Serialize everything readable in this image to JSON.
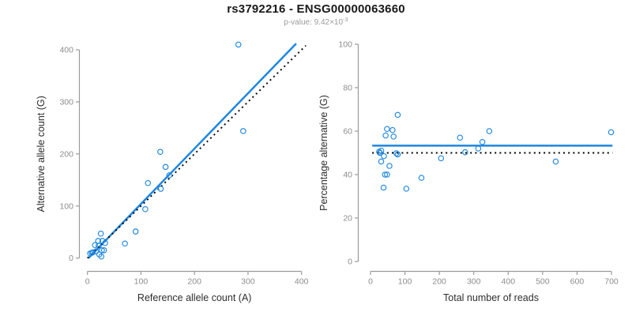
{
  "header": {
    "title": "rs3792216 - ENSG00000063660",
    "subtitle_prefix": "p-value: 9.42×10",
    "subtitle_exponent": "-3"
  },
  "colors": {
    "accent_blue": "#1E87E0",
    "dotted_black": "#000000",
    "axis_gray": "#9a9a9a",
    "tick_label_gray": "#8c8c8c",
    "axis_title_dark": "#2e2e2e",
    "subtitle_gray": "#9b9b9b"
  },
  "chart_data": [
    {
      "id": "allele-count-scatter",
      "type": "scatter",
      "xlabel": "Reference allele count (A)",
      "ylabel": "Alternative allele count (G)",
      "xlim": [
        0,
        400
      ],
      "ylim": [
        0,
        400
      ],
      "xticks": [
        0,
        100,
        200,
        300,
        400
      ],
      "yticks": [
        0,
        100,
        200,
        300,
        400
      ],
      "grid": false,
      "marker": "open-circle",
      "points": [
        [
          5,
          9
        ],
        [
          8,
          10
        ],
        [
          10,
          11
        ],
        [
          14,
          25
        ],
        [
          16,
          13
        ],
        [
          20,
          33
        ],
        [
          21,
          24
        ],
        [
          22,
          7
        ],
        [
          25,
          47
        ],
        [
          26,
          3
        ],
        [
          27,
          15
        ],
        [
          28,
          33
        ],
        [
          31,
          15
        ],
        [
          33,
          29
        ],
        [
          70,
          28
        ],
        [
          90,
          51
        ],
        [
          108,
          94
        ],
        [
          113,
          144
        ],
        [
          136,
          204
        ],
        [
          137,
          133
        ],
        [
          146,
          175
        ],
        [
          153,
          159
        ],
        [
          282,
          410
        ],
        [
          291,
          244
        ]
      ],
      "lines": [
        {
          "name": "regression-line",
          "style": "solid",
          "color": "blue",
          "points": [
            [
              2,
              0
            ],
            [
              390,
              412
            ]
          ]
        },
        {
          "name": "identity-line",
          "style": "dotted",
          "color": "black",
          "points": [
            [
              0,
              0
            ],
            [
              408,
              408
            ]
          ]
        }
      ]
    },
    {
      "id": "percentage-alternative-scatter",
      "type": "scatter",
      "xlabel": "Total number of reads",
      "ylabel": "Percentage alternative (G)",
      "xlim": [
        0,
        700
      ],
      "ylim": [
        0,
        100
      ],
      "xticks": [
        0,
        100,
        200,
        300,
        400,
        500,
        600,
        700
      ],
      "yticks": [
        0,
        20,
        40,
        60,
        80,
        100
      ],
      "grid": false,
      "marker": "open-circle",
      "points": [
        [
          25,
          50.5
        ],
        [
          27,
          50
        ],
        [
          31,
          51
        ],
        [
          31,
          46
        ],
        [
          38,
          34
        ],
        [
          39,
          48.5
        ],
        [
          42,
          40
        ],
        [
          44,
          58
        ],
        [
          48,
          40
        ],
        [
          48,
          61
        ],
        [
          55,
          44
        ],
        [
          64,
          60.5
        ],
        [
          67,
          57.5
        ],
        [
          75,
          49.8
        ],
        [
          79,
          49.3
        ],
        [
          79,
          67.5
        ],
        [
          104,
          33.5
        ],
        [
          148,
          38.5
        ],
        [
          205,
          47.5
        ],
        [
          260,
          57
        ],
        [
          275,
          50.3
        ],
        [
          313,
          52
        ],
        [
          325,
          55
        ],
        [
          345,
          60
        ],
        [
          538,
          46
        ],
        [
          699,
          59.5
        ]
      ],
      "lines": [
        {
          "name": "mean-percentage-line",
          "style": "solid",
          "color": "blue",
          "points": [
            [
              5,
              53.3
            ],
            [
              703,
              53.3
            ]
          ]
        },
        {
          "name": "fifty-percent-line",
          "style": "dotted",
          "color": "black",
          "points": [
            [
              5,
              50
            ],
            [
              703,
              50
            ]
          ]
        }
      ]
    }
  ]
}
